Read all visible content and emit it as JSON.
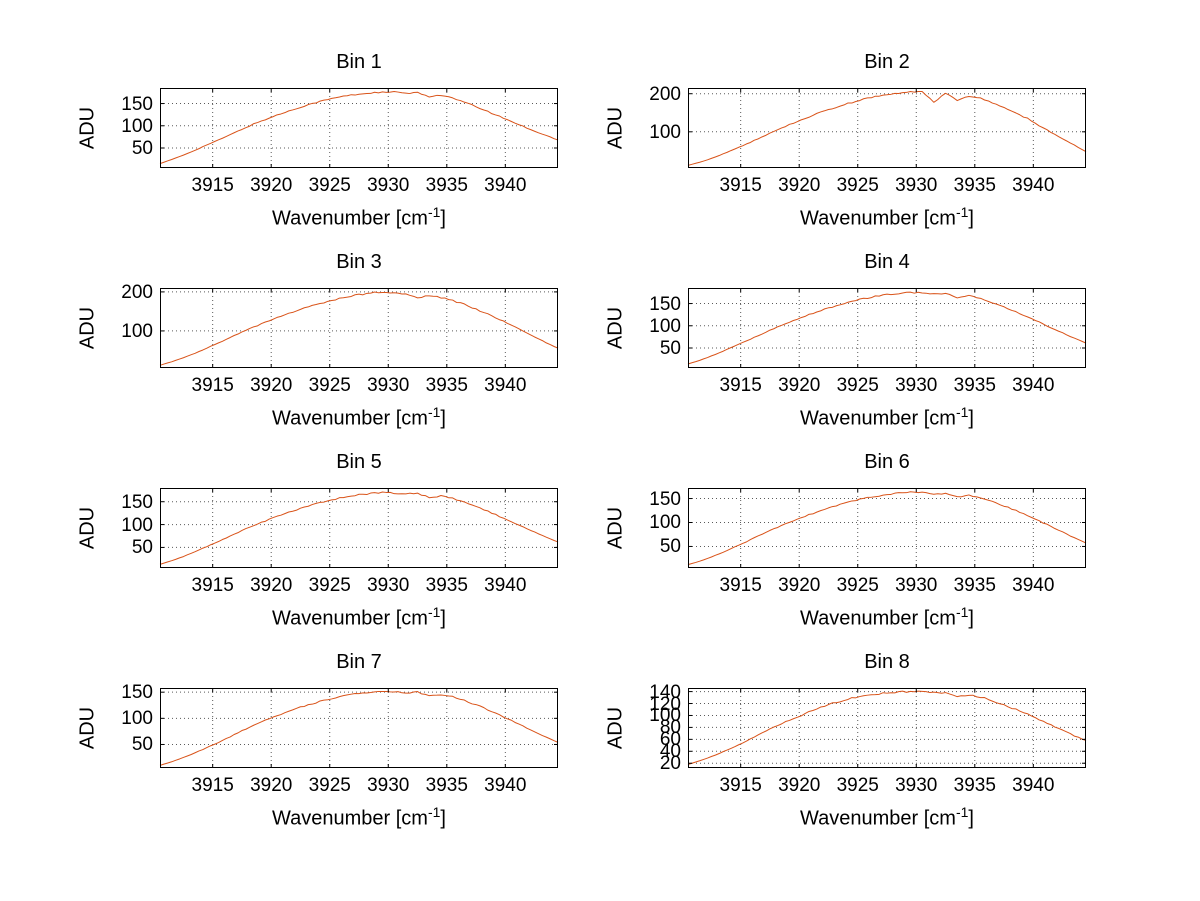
{
  "figure": {
    "background": "#ffffff",
    "text_color": "#000000",
    "axis_color": "#000000",
    "grid_color": "#5a5a5a"
  },
  "chart_data": {
    "type": "line",
    "layout_grid": {
      "rows": 4,
      "cols": 2
    },
    "common": {
      "xlabel": {
        "pre": "Wavenumber [cm",
        "sup": "-1",
        "post": "]"
      },
      "ylabel": "ADU",
      "grid": true,
      "line_color": "#D95319",
      "xlim": [
        3910.5,
        3944.5
      ],
      "xticks": [
        3915,
        3920,
        3925,
        3930,
        3935,
        3940
      ],
      "x": [
        3910.5,
        3911.5,
        3912.5,
        3913.5,
        3914.5,
        3915.5,
        3916.5,
        3917.5,
        3918.5,
        3919.5,
        3920.5,
        3921.5,
        3922.5,
        3923.5,
        3924.5,
        3925.5,
        3926.5,
        3927.5,
        3928.5,
        3929.5,
        3930.5,
        3931.5,
        3932.5,
        3933.5,
        3934.5,
        3935.5,
        3936.5,
        3937.5,
        3938.5,
        3939.5,
        3940.5,
        3941.5,
        3942.5,
        3943.5,
        3944.5
      ]
    },
    "charts": [
      {
        "title": "Bin 1",
        "ylim": [
          5,
          185
        ],
        "yticks": [
          50,
          100,
          150
        ],
        "noise": 3,
        "y": [
          15,
          24,
          34,
          45,
          57,
          68,
          80,
          92,
          104,
          114,
          124,
          133,
          142,
          150,
          157,
          163,
          168,
          171,
          174,
          175,
          176,
          173,
          174,
          166,
          169,
          162,
          153,
          143,
          132,
          121,
          110,
          99,
          88,
          78,
          68
        ]
      },
      {
        "title": "Bin 2",
        "ylim": [
          5,
          215
        ],
        "yticks": [
          100,
          200
        ],
        "noise": 4,
        "y": [
          12,
          20,
          30,
          42,
          55,
          68,
          82,
          96,
          110,
          123,
          135,
          147,
          158,
          168,
          177,
          185,
          192,
          197,
          201,
          204,
          205,
          178,
          200,
          183,
          193,
          188,
          176,
          163,
          149,
          135,
          116,
          99,
          82,
          65,
          48
        ]
      },
      {
        "title": "Bin 3",
        "ylim": [
          5,
          210
        ],
        "yticks": [
          100,
          200
        ],
        "noise": 4,
        "y": [
          12,
          21,
          31,
          43,
          56,
          69,
          83,
          97,
          110,
          122,
          134,
          145,
          155,
          164,
          172,
          180,
          188,
          193,
          197,
          200,
          198,
          196,
          184,
          190,
          186,
          178,
          168,
          156,
          143,
          130,
          115,
          100,
          85,
          70,
          56
        ]
      },
      {
        "title": "Bin 4",
        "ylim": [
          5,
          185
        ],
        "yticks": [
          50,
          100,
          150
        ],
        "noise": 3,
        "y": [
          14,
          22,
          32,
          43,
          55,
          66,
          78,
          90,
          101,
          112,
          122,
          131,
          140,
          148,
          155,
          161,
          166,
          170,
          173,
          175,
          174,
          172,
          173,
          163,
          168,
          161,
          152,
          142,
          131,
          120,
          108,
          96,
          84,
          72,
          61
        ]
      },
      {
        "title": "Bin 5",
        "ylim": [
          5,
          180
        ],
        "yticks": [
          50,
          100,
          150
        ],
        "noise": 3,
        "y": [
          13,
          21,
          30,
          41,
          52,
          63,
          75,
          87,
          98,
          108,
          118,
          127,
          135,
          143,
          150,
          156,
          161,
          165,
          168,
          170,
          169,
          167,
          168,
          159,
          163,
          157,
          149,
          139,
          129,
          118,
          107,
          95,
          84,
          73,
          62
        ]
      },
      {
        "title": "Bin 6",
        "ylim": [
          5,
          172
        ],
        "yticks": [
          50,
          100,
          150
        ],
        "noise": 3,
        "y": [
          12,
          19,
          28,
          38,
          49,
          60,
          72,
          83,
          94,
          104,
          113,
          122,
          130,
          138,
          144,
          150,
          155,
          158,
          161,
          163,
          162,
          160,
          161,
          153,
          157,
          152,
          144,
          135,
          125,
          114,
          103,
          92,
          80,
          68,
          57
        ]
      },
      {
        "title": "Bin 7",
        "ylim": [
          5,
          158
        ],
        "yticks": [
          50,
          100,
          150
        ],
        "noise": 3,
        "y": [
          10,
          17,
          25,
          34,
          44,
          54,
          65,
          76,
          86,
          96,
          105,
          113,
          121,
          128,
          134,
          140,
          144,
          148,
          150,
          152,
          151,
          149,
          150,
          142,
          146,
          141,
          134,
          126,
          116,
          106,
          96,
          85,
          74,
          64,
          54
        ]
      },
      {
        "title": "Bin 8",
        "ylim": [
          12,
          146
        ],
        "yticks": [
          20,
          40,
          60,
          80,
          100,
          120,
          140
        ],
        "noise": 3,
        "y": [
          18,
          24,
          31,
          39,
          48,
          57,
          67,
          77,
          86,
          95,
          103,
          111,
          118,
          124,
          129,
          133,
          136,
          138,
          139,
          140,
          139,
          138,
          138,
          132,
          135,
          131,
          125,
          118,
          110,
          102,
          93,
          84,
          75,
          66,
          58
        ]
      }
    ]
  }
}
